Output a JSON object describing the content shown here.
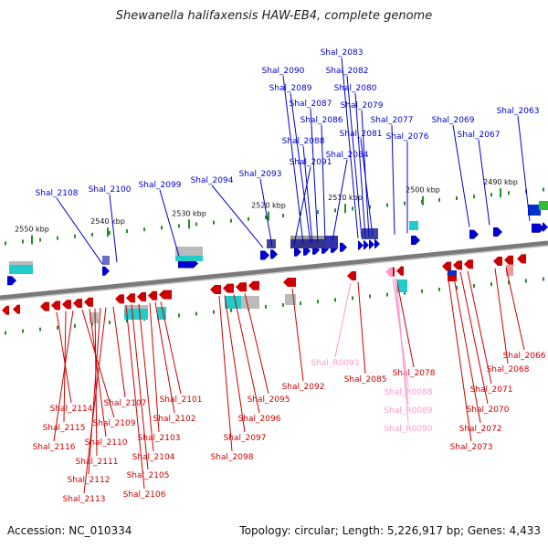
{
  "title": "Shewanella halifaxensis HAW-EB4, complete genome",
  "accession": "Accession: NC_010334",
  "topology": "Topology: circular; Length: 5,226,917 bp; Genes: 4,433",
  "colors": {
    "forward": "#0000cc",
    "reverse": "#cc0000",
    "rna": "#ff99cc",
    "backbone": "#7a7a7a",
    "tick": "#2a8a2a"
  },
  "scale_labels": [
    "2550 kbp",
    "2540 kbp",
    "2530 kbp",
    "2520 kbp",
    "2510 kbp",
    "2500 kbp",
    "2490 kbp"
  ],
  "forward_genes": [
    "Shal_2108",
    "Shal_2100",
    "Shal_2099",
    "Shal_2094",
    "Shal_2093",
    "Shal_2091",
    "Shal_2090",
    "Shal_2089",
    "Shal_2087",
    "Shal_2088",
    "Shal_2086",
    "Shal_2084",
    "Shal_2083",
    "Shal_2082",
    "Shal_2080",
    "Shal_2079",
    "Shal_2081",
    "Shal_2077",
    "Shal_2076",
    "Shal_2069",
    "Shal_2067",
    "Shal_2063"
  ],
  "reverse_genes": [
    "Shal_2114",
    "Shal_2115",
    "Shal_2116",
    "Shal_2107",
    "Shal_2109",
    "Shal_2110",
    "Shal_2111",
    "Shal_2112",
    "Shal_2113",
    "Shal_2101",
    "Shal_2102",
    "Shal_2103",
    "Shal_2104",
    "Shal_2105",
    "Shal_2106",
    "Shal_2095",
    "Shal_2096",
    "Shal_2097",
    "Shal_2098",
    "Shal_2092",
    "Shal_2085",
    "Shal_2078",
    "Shal_2071",
    "Shal_2070",
    "Shal_2072",
    "Shal_2073",
    "Shal_2068",
    "Shal_2066"
  ],
  "rna_genes": [
    "Shal_R0091",
    "Shal_R0088",
    "Shal_R0089",
    "Shal_R0090"
  ]
}
